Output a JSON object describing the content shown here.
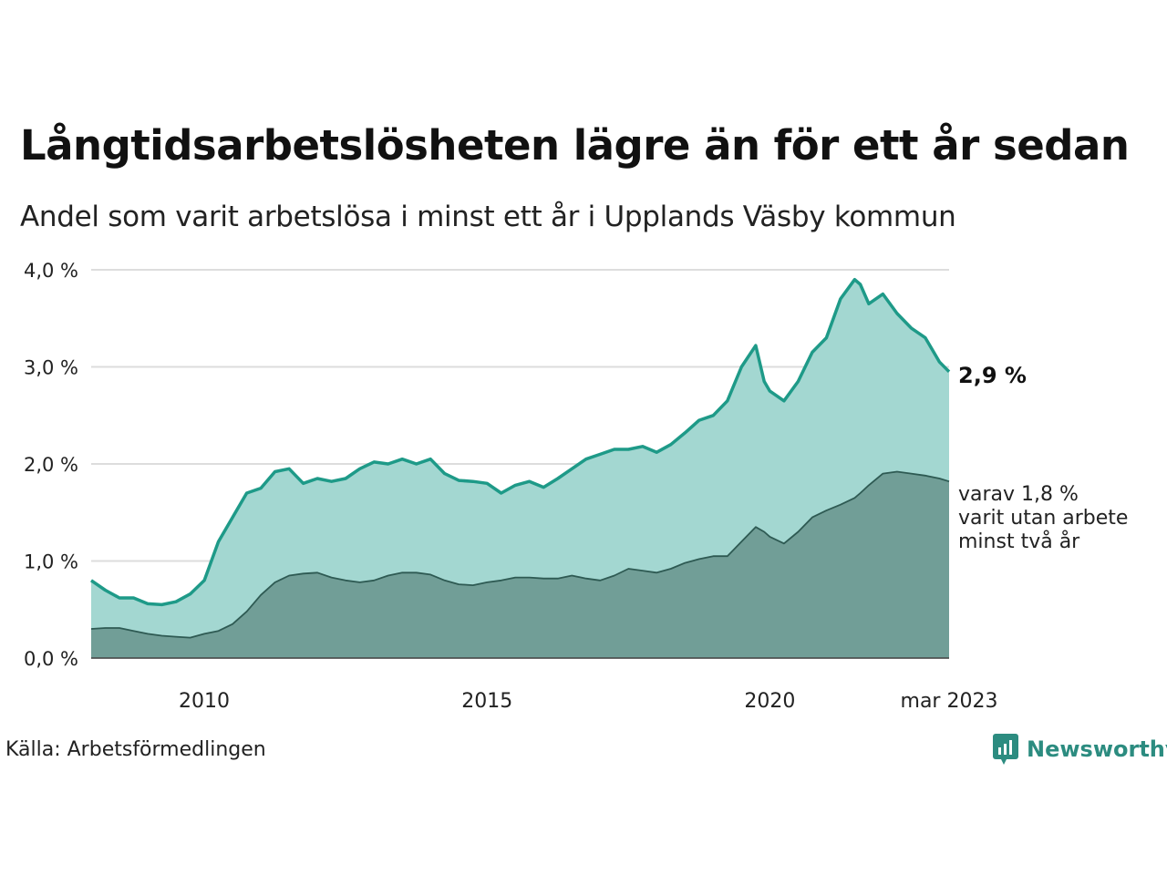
{
  "title": "Långtidsarbetslösheten lägre än för ett år sedan",
  "subtitle": "Andel som varit arbetslösa i minst ett år i Upplands Väsby kommun",
  "source": "Källa: Arbetsförmedlingen",
  "brand": {
    "name": "Newsworthy",
    "icon": "newsworthy-logo-icon"
  },
  "colors": {
    "series1_line": "#1e9a88",
    "series1_fill": "#a3d7d1",
    "series2_line": "#2e5a53",
    "series2_fill": "#719e97",
    "grid": "#dddddd"
  },
  "chart_data": {
    "type": "area",
    "ylim": [
      0,
      4
    ],
    "y_ticks": [
      {
        "value": 0,
        "label": "0,0 %"
      },
      {
        "value": 1,
        "label": "1,0 %"
      },
      {
        "value": 2,
        "label": "2,0 %"
      },
      {
        "value": 3,
        "label": "3,0 %"
      },
      {
        "value": 4,
        "label": "4,0 %"
      }
    ],
    "x_ticks": [
      {
        "value": 2010,
        "label": "2010"
      },
      {
        "value": 2015,
        "label": "2015"
      },
      {
        "value": 2020,
        "label": "2020"
      },
      {
        "value": 2023.17,
        "label": "mar 2023"
      }
    ],
    "xlim": [
      2008.0,
      2023.17
    ],
    "grid": true,
    "end_labels": {
      "series1": "2,9 %",
      "series2": [
        "varav 1,8 %",
        "varit utan arbete",
        "minst två år"
      ]
    },
    "series": [
      {
        "x": [
          2008.0,
          2008.25,
          2008.5,
          2008.75,
          2009.0,
          2009.25,
          2009.5,
          2009.75,
          2010.0,
          2010.25,
          2010.5,
          2010.75,
          2011.0,
          2011.25,
          2011.5,
          2011.75,
          2012.0,
          2012.25,
          2012.5,
          2012.75,
          2013.0,
          2013.25,
          2013.5,
          2013.75,
          2014.0,
          2014.25,
          2014.5,
          2014.75,
          2015.0,
          2015.25,
          2015.5,
          2015.75,
          2016.0,
          2016.25,
          2016.5,
          2016.75,
          2017.0,
          2017.25,
          2017.5,
          2017.75,
          2018.0,
          2018.25,
          2018.5,
          2018.75,
          2019.0,
          2019.25,
          2019.5,
          2019.75,
          2019.9,
          2020.0,
          2020.25,
          2020.5,
          2020.75,
          2021.0,
          2021.25,
          2021.5,
          2021.6,
          2021.75,
          2022.0,
          2022.25,
          2022.5,
          2022.75,
          2023.0,
          2023.17
        ],
        "values": [
          0.8,
          0.7,
          0.62,
          0.62,
          0.56,
          0.55,
          0.58,
          0.66,
          0.8,
          1.2,
          1.45,
          1.7,
          1.75,
          1.92,
          1.95,
          1.8,
          1.85,
          1.82,
          1.85,
          1.95,
          2.02,
          2.0,
          2.05,
          2.0,
          2.05,
          1.9,
          1.83,
          1.82,
          1.8,
          1.7,
          1.78,
          1.82,
          1.76,
          1.85,
          1.95,
          2.05,
          2.1,
          2.15,
          2.15,
          2.18,
          2.12,
          2.2,
          2.32,
          2.45,
          2.5,
          2.65,
          3.0,
          3.22,
          2.85,
          2.75,
          2.65,
          2.85,
          3.15,
          3.3,
          3.7,
          3.9,
          3.85,
          3.65,
          3.75,
          3.55,
          3.4,
          3.3,
          3.05,
          2.95
        ]
      },
      {
        "x": [
          2008.0,
          2008.25,
          2008.5,
          2008.75,
          2009.0,
          2009.25,
          2009.5,
          2009.75,
          2010.0,
          2010.25,
          2010.5,
          2010.75,
          2011.0,
          2011.25,
          2011.5,
          2011.75,
          2012.0,
          2012.25,
          2012.5,
          2012.75,
          2013.0,
          2013.25,
          2013.5,
          2013.75,
          2014.0,
          2014.25,
          2014.5,
          2014.75,
          2015.0,
          2015.25,
          2015.5,
          2015.75,
          2016.0,
          2016.25,
          2016.5,
          2016.75,
          2017.0,
          2017.25,
          2017.5,
          2017.75,
          2018.0,
          2018.25,
          2018.5,
          2018.75,
          2019.0,
          2019.25,
          2019.5,
          2019.75,
          2019.9,
          2020.0,
          2020.25,
          2020.5,
          2020.75,
          2021.0,
          2021.25,
          2021.5,
          2021.6,
          2021.75,
          2022.0,
          2022.25,
          2022.5,
          2022.75,
          2023.0,
          2023.17
        ],
        "values": [
          0.3,
          0.31,
          0.31,
          0.28,
          0.25,
          0.23,
          0.22,
          0.21,
          0.25,
          0.28,
          0.35,
          0.48,
          0.65,
          0.78,
          0.85,
          0.87,
          0.88,
          0.83,
          0.8,
          0.78,
          0.8,
          0.85,
          0.88,
          0.88,
          0.86,
          0.8,
          0.76,
          0.75,
          0.78,
          0.8,
          0.83,
          0.83,
          0.82,
          0.82,
          0.85,
          0.82,
          0.8,
          0.85,
          0.92,
          0.9,
          0.88,
          0.92,
          0.98,
          1.02,
          1.05,
          1.05,
          1.2,
          1.35,
          1.3,
          1.25,
          1.18,
          1.3,
          1.45,
          1.52,
          1.58,
          1.65,
          1.7,
          1.78,
          1.9,
          1.92,
          1.9,
          1.88,
          1.85,
          1.82
        ]
      }
    ]
  }
}
